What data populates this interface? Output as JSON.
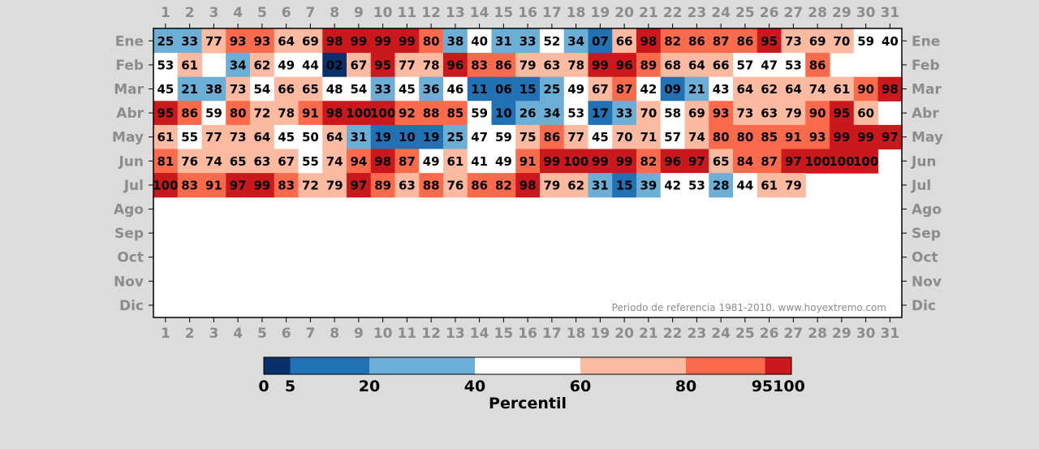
{
  "chart_data": {
    "type": "heatmap",
    "x": [
      "1",
      "2",
      "3",
      "4",
      "5",
      "6",
      "7",
      "8",
      "9",
      "10",
      "11",
      "12",
      "13",
      "14",
      "15",
      "16",
      "17",
      "18",
      "19",
      "20",
      "21",
      "22",
      "23",
      "24",
      "25",
      "26",
      "27",
      "28",
      "29",
      "30",
      "31"
    ],
    "y": [
      "Ene",
      "Feb",
      "Mar",
      "Abr",
      "May",
      "Jun",
      "Jul",
      "Ago",
      "Sep",
      "Oct",
      "Nov",
      "Dic"
    ],
    "values": [
      [
        "25",
        "33",
        "77",
        "93",
        "93",
        "64",
        "69",
        "98",
        "99",
        "99",
        "99",
        "80",
        "38",
        "40",
        "31",
        "33",
        "52",
        "34",
        "07",
        "66",
        "98",
        "82",
        "86",
        "87",
        "86",
        "95",
        "73",
        "69",
        "70",
        "59",
        "40"
      ],
      [
        "53",
        "61",
        "",
        "34",
        "62",
        "49",
        "44",
        "02",
        "67",
        "95",
        "77",
        "78",
        "96",
        "83",
        "86",
        "79",
        "63",
        "78",
        "99",
        "96",
        "89",
        "68",
        "64",
        "66",
        "57",
        "47",
        "53",
        "86"
      ],
      [
        "45",
        "21",
        "38",
        "73",
        "54",
        "66",
        "65",
        "48",
        "54",
        "33",
        "45",
        "36",
        "46",
        "11",
        "06",
        "15",
        "25",
        "49",
        "67",
        "87",
        "42",
        "09",
        "21",
        "43",
        "64",
        "62",
        "64",
        "74",
        "61",
        "90",
        "98"
      ],
      [
        "95",
        "86",
        "59",
        "80",
        "72",
        "78",
        "91",
        "98",
        "100",
        "100",
        "92",
        "88",
        "85",
        "59",
        "10",
        "26",
        "34",
        "53",
        "17",
        "33",
        "70",
        "58",
        "69",
        "93",
        "73",
        "63",
        "79",
        "90",
        "95",
        "60"
      ],
      [
        "61",
        "55",
        "77",
        "73",
        "64",
        "45",
        "50",
        "64",
        "31",
        "19",
        "10",
        "19",
        "25",
        "47",
        "59",
        "75",
        "86",
        "77",
        "45",
        "70",
        "71",
        "57",
        "74",
        "80",
        "80",
        "85",
        "91",
        "93",
        "99",
        "99",
        "97"
      ],
      [
        "81",
        "76",
        "74",
        "65",
        "63",
        "67",
        "55",
        "74",
        "94",
        "98",
        "87",
        "49",
        "61",
        "41",
        "49",
        "91",
        "99",
        "100",
        "99",
        "99",
        "82",
        "96",
        "97",
        "65",
        "84",
        "87",
        "97",
        "100",
        "100",
        "100"
      ],
      [
        "100",
        "83",
        "91",
        "97",
        "99",
        "83",
        "72",
        "79",
        "97",
        "89",
        "63",
        "88",
        "76",
        "86",
        "82",
        "98",
        "79",
        "62",
        "31",
        "15",
        "39",
        "42",
        "53",
        "28",
        "44",
        "61",
        "79"
      ],
      [],
      [],
      [],
      [],
      []
    ],
    "colorbar": {
      "label": "Percentil",
      "ticks": [
        "0",
        "5",
        "20",
        "40",
        "60",
        "80",
        "95100"
      ],
      "bins": [
        [
          0,
          5,
          "#08306b"
        ],
        [
          5,
          20,
          "#2171b5"
        ],
        [
          20,
          40,
          "#6baed6"
        ],
        [
          40,
          60,
          "#ffffff"
        ],
        [
          60,
          80,
          "#fcbba1"
        ],
        [
          80,
          95,
          "#fb6a4a"
        ],
        [
          95,
          100,
          "#cb181d"
        ]
      ]
    },
    "annotation": "Periodo de referencia 1981-2010. www.hoyextremo.com"
  }
}
